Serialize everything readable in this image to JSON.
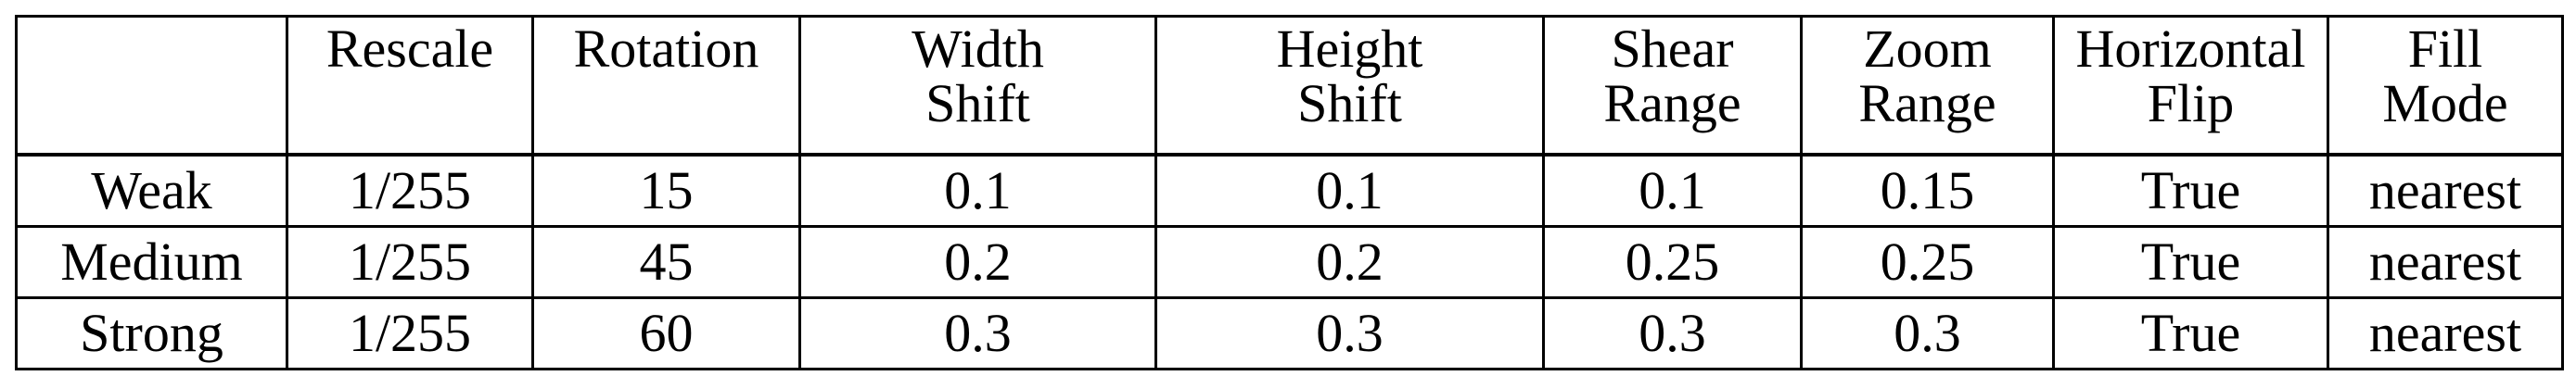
{
  "table": {
    "columns": [
      {
        "line1": "",
        "line2": ""
      },
      {
        "line1": "Rescale",
        "line2": ""
      },
      {
        "line1": "Rotation",
        "line2": ""
      },
      {
        "line1": "Width",
        "line2": "Shift"
      },
      {
        "line1": "Height",
        "line2": "Shift"
      },
      {
        "line1": "Shear",
        "line2": "Range"
      },
      {
        "line1": "Zoom",
        "line2": "Range"
      },
      {
        "line1": "Horizontal",
        "line2": "Flip"
      },
      {
        "line1": "Fill",
        "line2": "Mode"
      }
    ],
    "rows": [
      [
        "Weak",
        "1/255",
        "15",
        "0.1",
        "0.1",
        "0.1",
        "0.15",
        "True",
        "nearest"
      ],
      [
        "Medium",
        "1/255",
        "45",
        "0.2",
        "0.2",
        "0.25",
        "0.25",
        "True",
        "nearest"
      ],
      [
        "Strong",
        "1/255",
        "60",
        "0.3",
        "0.3",
        "0.3",
        "0.3",
        "True",
        "nearest"
      ]
    ]
  }
}
